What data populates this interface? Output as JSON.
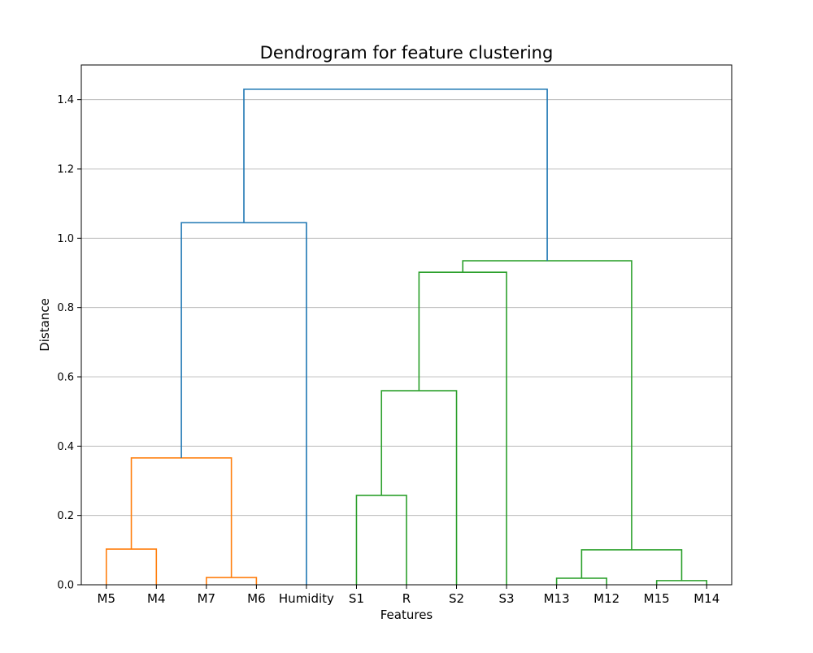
{
  "chart_data": {
    "type": "dendrogram",
    "title": "Dendrogram for feature clustering",
    "xlabel": "Features",
    "ylabel": "Distance",
    "ylim": [
      0,
      1.5
    ],
    "yticks": [
      0.0,
      0.2,
      0.4,
      0.6,
      0.8,
      1.0,
      1.2,
      1.4
    ],
    "ytick_labels": [
      "0.0",
      "0.2",
      "0.4",
      "0.6",
      "0.8",
      "1.0",
      "1.2",
      "1.4"
    ],
    "grid": "y",
    "leaves": [
      "M5",
      "M4",
      "M7",
      "M6",
      "Humidity",
      "S1",
      "R",
      "S2",
      "S3",
      "M13",
      "M12",
      "M15",
      "M14"
    ],
    "cluster_colors": {
      "C1": "#ff7f0e",
      "C2": "#2ca02c",
      "above_threshold": "#1f77b4"
    },
    "links": [
      {
        "left": "M5",
        "right": "M4",
        "height": 0.103,
        "cluster": "C1"
      },
      {
        "left": "M7",
        "right": "M6",
        "height": 0.021,
        "cluster": "C1"
      },
      {
        "left": "M5+M4",
        "right": "M7+M6",
        "height": 0.366,
        "cluster": "C1"
      },
      {
        "left": "M5+M4+M7+M6",
        "right": "Humidity",
        "height": 1.045,
        "cluster": "above_threshold"
      },
      {
        "left": "S1",
        "right": "R",
        "height": 0.258,
        "cluster": "C2"
      },
      {
        "left": "S1+R",
        "right": "S2",
        "height": 0.56,
        "cluster": "C2"
      },
      {
        "left": "S1+R+S2",
        "right": "S3",
        "height": 0.902,
        "cluster": "C2"
      },
      {
        "left": "M13",
        "right": "M12",
        "height": 0.019,
        "cluster": "C2"
      },
      {
        "left": "M15",
        "right": "M14",
        "height": 0.012,
        "cluster": "C2"
      },
      {
        "left": "M13+M12",
        "right": "M15+M14",
        "height": 0.101,
        "cluster": "C2"
      },
      {
        "left": "S1+R+S2+S3",
        "right": "M13+M12+M15+M14",
        "height": 0.935,
        "cluster": "C2"
      },
      {
        "left": "M5+M4+M7+M6+Humidity",
        "right": "S1+R+S2+S3+M13+M12+M15+M14",
        "height": 1.43,
        "cluster": "above_threshold"
      }
    ]
  }
}
